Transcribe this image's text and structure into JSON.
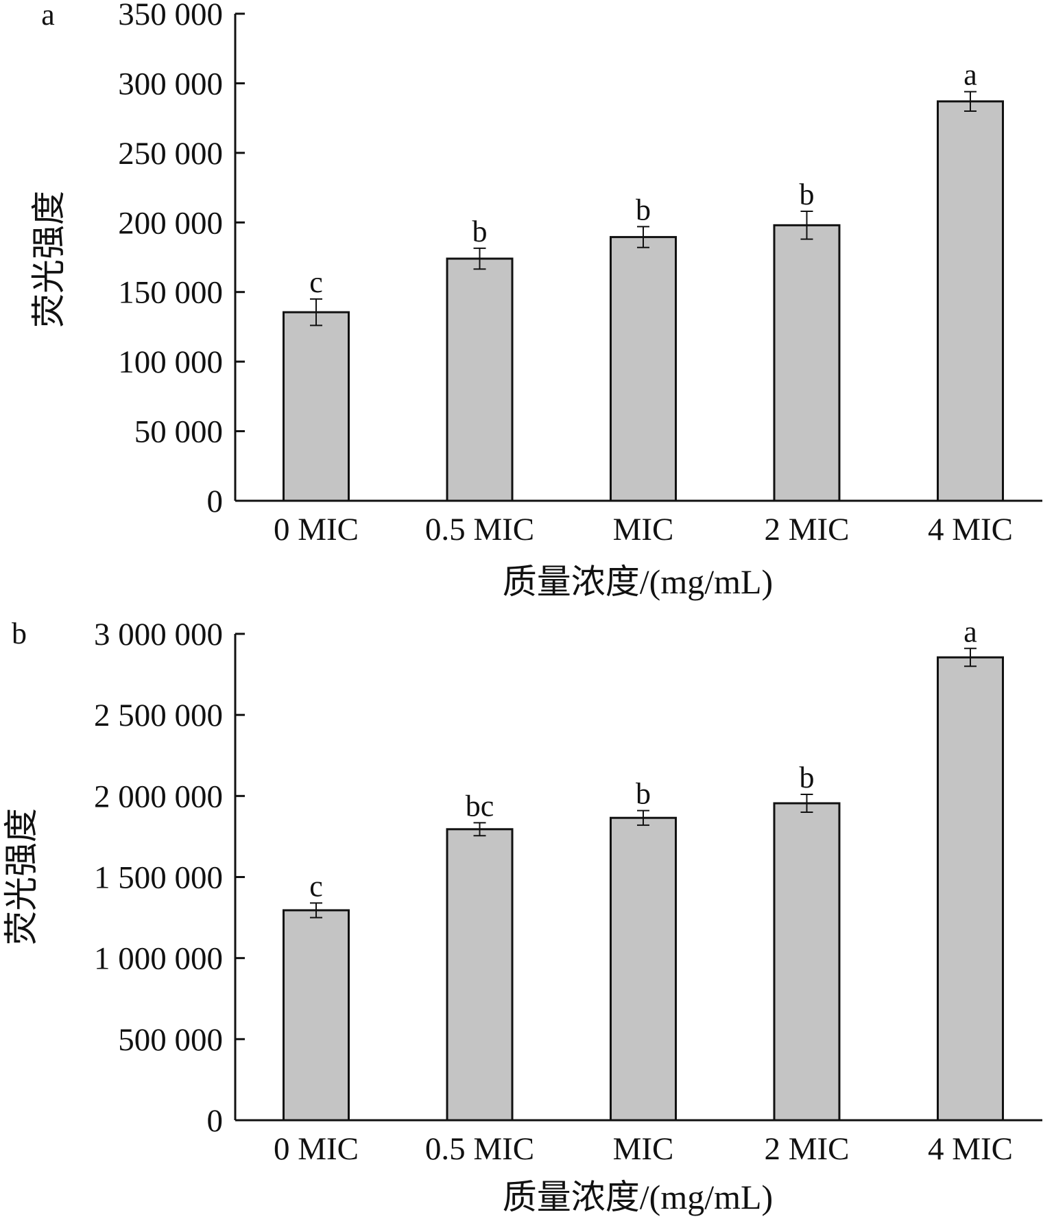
{
  "colors": {
    "bar_fill": "#c4c4c4",
    "ink": "#111111",
    "background": "#ffffff"
  },
  "chart_data": [
    {
      "panel": "a",
      "type": "bar",
      "categories": [
        "0 MIC",
        "0.5 MIC",
        "MIC",
        "2 MIC",
        "4 MIC"
      ],
      "values": [
        135500,
        174000,
        189500,
        198000,
        287000
      ],
      "error": [
        9500,
        7500,
        7500,
        10000,
        7000
      ],
      "significance": [
        "c",
        "b",
        "b",
        "b",
        "a"
      ],
      "xlabel": "质量浓度/(mg/mL)",
      "ylabel": "荧光强度",
      "ylim": [
        0,
        350000
      ],
      "yticks": [
        0,
        50000,
        100000,
        150000,
        200000,
        250000,
        300000,
        350000
      ],
      "ytick_labels": [
        "0",
        "50 000",
        "100 000",
        "150 000",
        "200 000",
        "250 000",
        "300 000",
        "350 000"
      ],
      "grid": false,
      "legend": "none"
    },
    {
      "panel": "b",
      "type": "bar",
      "categories": [
        "0 MIC",
        "0.5 MIC",
        "MIC",
        "2 MIC",
        "4 MIC"
      ],
      "values": [
        1295000,
        1795000,
        1865000,
        1955000,
        2855000
      ],
      "error": [
        45000,
        40000,
        45000,
        55000,
        55000
      ],
      "significance": [
        "c",
        "bc",
        "b",
        "b",
        "a"
      ],
      "xlabel": "质量浓度/(mg/mL)",
      "ylabel": "荧光强度",
      "ylim": [
        0,
        3000000
      ],
      "yticks": [
        0,
        500000,
        1000000,
        1500000,
        2000000,
        2500000,
        3000000
      ],
      "ytick_labels": [
        "0",
        "500 000",
        "1 000 000",
        "1 500 000",
        "2 000 000",
        "2 500 000",
        "3 000 000"
      ],
      "grid": false,
      "legend": "none"
    }
  ]
}
